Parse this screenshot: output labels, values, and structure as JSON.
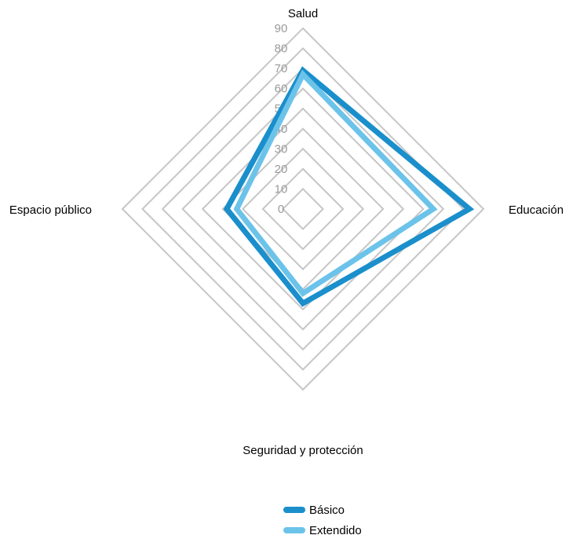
{
  "chart_data": {
    "type": "radar",
    "axes": [
      "Salud",
      "Educación",
      "Seguridad y protección",
      "Espacio público"
    ],
    "rlim": [
      0,
      90
    ],
    "ticks": [
      "0",
      "10",
      "20",
      "30",
      "40",
      "50",
      "60",
      "70",
      "80",
      "90"
    ],
    "tick_values": [
      0,
      10,
      20,
      30,
      40,
      50,
      60,
      70,
      80,
      90
    ],
    "grid": true,
    "legend_position": "bottom",
    "series": [
      {
        "name": "Básico",
        "values": [
          69,
          83,
          47,
          38
        ],
        "color": "#1a8fcc"
      },
      {
        "name": "Extendido",
        "values": [
          67,
          65,
          42,
          33
        ],
        "color": "#6cc3ea"
      }
    ]
  }
}
